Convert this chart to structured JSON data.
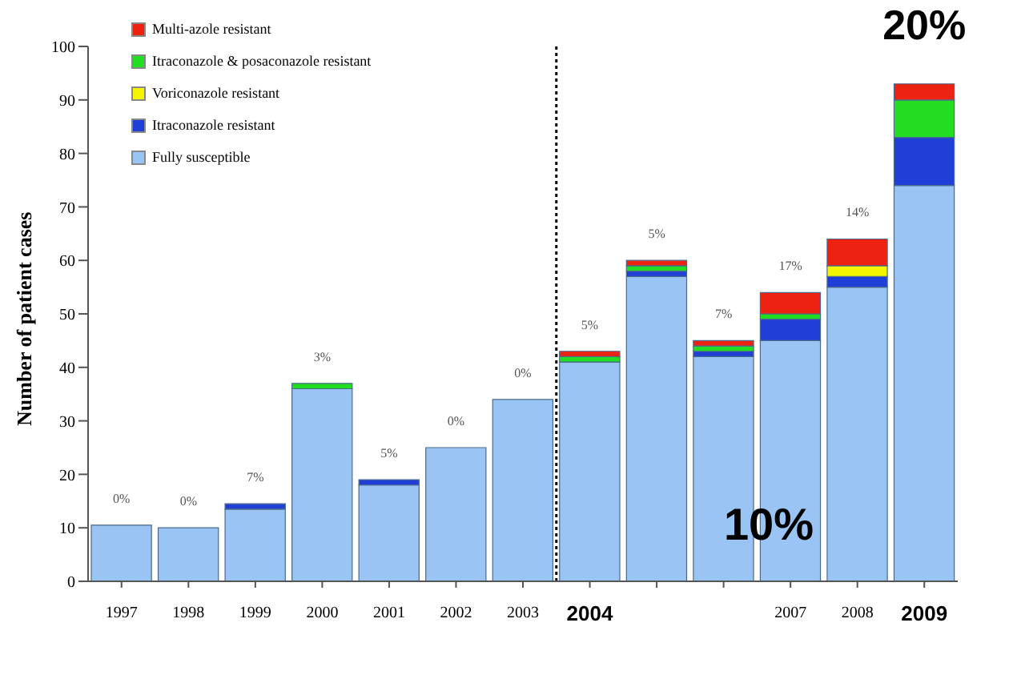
{
  "chart_data": {
    "type": "bar",
    "stacked": true,
    "ylabel": "Number of patient cases",
    "x": [
      1997,
      1998,
      1999,
      2000,
      2001,
      2002,
      2003,
      2004,
      2005,
      2006,
      2007,
      2008,
      2009
    ],
    "xlim": [
      1996.5,
      2009.5
    ],
    "xticks": [
      1997,
      1998,
      1999,
      2000,
      2001,
      2002,
      2003,
      2004,
      {
        "value": 2005,
        "label": null
      },
      {
        "value": 2006,
        "label": null
      },
      2007,
      2008,
      2009
    ],
    "ylim": [
      0,
      100
    ],
    "yticks": [
      0,
      10,
      20,
      30,
      40,
      50,
      60,
      70,
      80,
      90,
      100
    ],
    "series": [
      {
        "name": "Fully susceptible",
        "color": "#99c4f4",
        "values": [
          10.5,
          10,
          13.5,
          36,
          18,
          25,
          34,
          41,
          57,
          42,
          45,
          55,
          74
        ]
      },
      {
        "name": "Itraconazole resistant",
        "color": "#1f3fd6",
        "values": [
          0,
          0,
          1,
          0,
          1,
          0,
          0,
          0,
          1,
          1,
          4,
          2,
          9
        ]
      },
      {
        "name": "Voriconazole resistant",
        "color": "#f5f500",
        "values": [
          0,
          0,
          0,
          0,
          0,
          0,
          0,
          0,
          0,
          0,
          0,
          2,
          0
        ]
      },
      {
        "name": "Itraconazole & posaconazole resistant",
        "color": "#22dd22",
        "values": [
          0,
          0,
          0,
          1,
          0,
          0,
          0,
          1,
          1,
          1,
          1,
          0,
          7
        ]
      },
      {
        "name": "Multi-azole resistant",
        "color": "#ee2211",
        "values": [
          0,
          0,
          0,
          0,
          0,
          0,
          0,
          1,
          1,
          1,
          4,
          5,
          3
        ]
      }
    ],
    "ref_lines": [
      {
        "axis": "x",
        "value": 2003.5,
        "color": "#000000",
        "line_style": "dotted"
      }
    ],
    "annotations": [
      {
        "text": "0%",
        "x": 1997,
        "y": 10.5
      },
      {
        "text": "0%",
        "x": 1998,
        "y": 10
      },
      {
        "text": "7%",
        "x": 1999,
        "y": 14.5
      },
      {
        "text": "3%",
        "x": 2000,
        "y": 37
      },
      {
        "text": "5%",
        "x": 2001,
        "y": 19
      },
      {
        "text": "0%",
        "x": 2002,
        "y": 25
      },
      {
        "text": "0%",
        "x": 2003,
        "y": 34
      },
      {
        "text": "5%",
        "x": 2004,
        "y": 43
      },
      {
        "text": "5%",
        "x": 2005,
        "y": 60
      },
      {
        "text": "7%",
        "x": 2006,
        "y": 45
      },
      {
        "text": "17%",
        "x": 2007,
        "y": 54
      },
      {
        "text": "14%",
        "x": 2008,
        "y": 64
      },
      {
        "text": "20%",
        "x": 2009,
        "y": 93
      },
      "10%"
    ],
    "legend": "top left",
    "grid": false
  }
}
